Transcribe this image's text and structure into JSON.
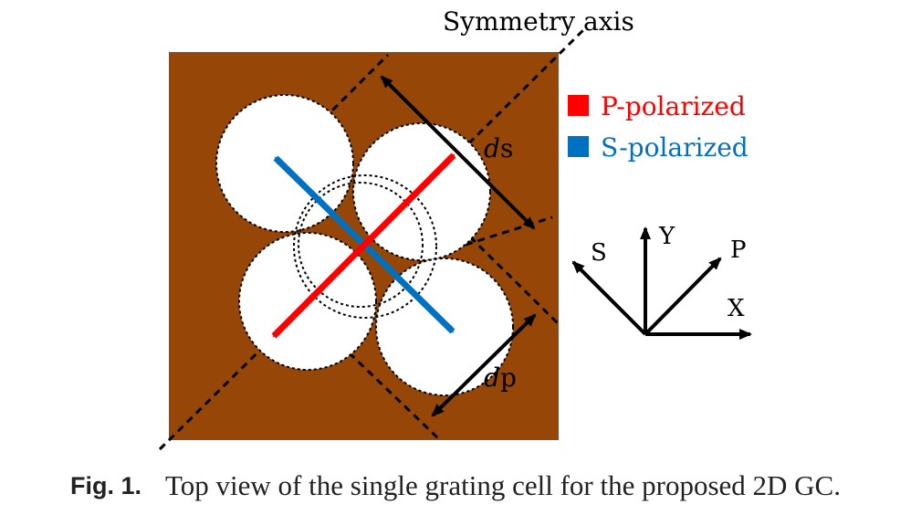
{
  "figure": {
    "axis_label": "Symmetry axis",
    "legend": [
      {
        "label": "P-polarized",
        "color": "#ff0000"
      },
      {
        "label": "S-polarized",
        "color": "#0070c0"
      }
    ],
    "dimensions": {
      "ds_var": "d",
      "ds_sub": "s",
      "dp_var": "d",
      "dp_sub": "p"
    },
    "coords": {
      "s": "S",
      "y": "Y",
      "p": "P",
      "x": "X"
    },
    "colors": {
      "substrate": "#964707",
      "hole": "#ffffff",
      "p_arrow": "#ff0000",
      "s_arrow": "#0070c0"
    }
  },
  "caption": {
    "label": "Fig. 1.",
    "text": "Top view of the single grating cell for the proposed 2D GC."
  }
}
